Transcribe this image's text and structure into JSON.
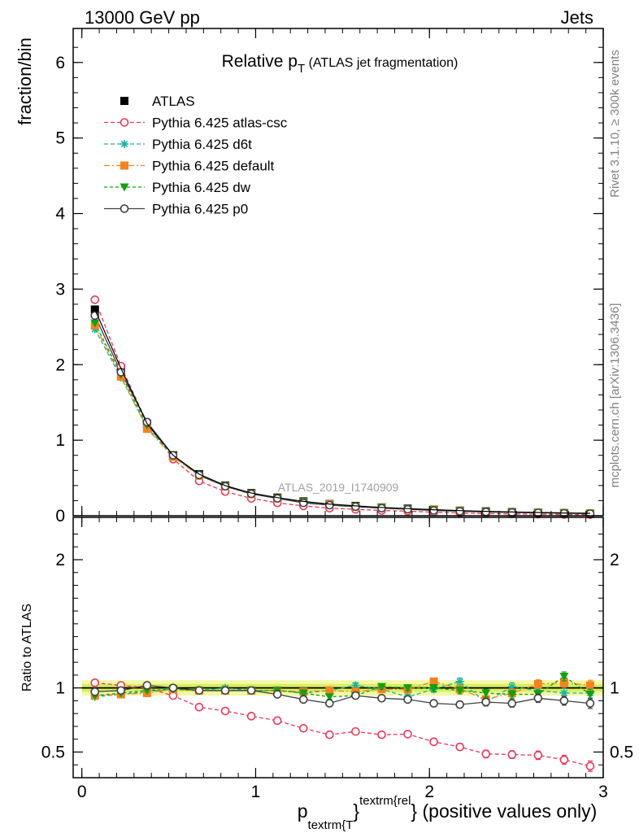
{
  "header": {
    "energy": "13000 GeV pp",
    "category": "Jets"
  },
  "side_labels": {
    "rivet": "Rivet 3.1.10, ≥ 300k events",
    "source": "mcplots.cern.ch [arXiv:1306.3436]"
  },
  "watermark": "ATLAS_2019_I1740909",
  "title": {
    "main": "Relative p",
    "sub": "T",
    "paren": " (ATLAS jet fragmentation)"
  },
  "axes": {
    "ylabel_main": "fraction/bin",
    "ylabel_ratio": "Ratio to ATLAS",
    "xlabel": {
      "p": "p",
      "sub": "textrm{T",
      "brace": "}",
      "sup": "textrm{rel",
      "rest": "} (positive values only)"
    }
  },
  "legend": [
    {
      "label": "ATLAS",
      "key": "atlas"
    },
    {
      "label": "Pythia 6.425 atlas-csc",
      "key": "csc"
    },
    {
      "label": "Pythia 6.425 d6t",
      "key": "d6t"
    },
    {
      "label": "Pythia 6.425 default",
      "key": "def"
    },
    {
      "label": "Pythia 6.425 dw",
      "key": "dw"
    },
    {
      "label": "Pythia 6.425 p0",
      "key": "p0"
    }
  ],
  "styles": {
    "atlas": {
      "color": "#000000",
      "marker": "square-filled",
      "dash": ""
    },
    "csc": {
      "color": "#e8385a",
      "marker": "circle-open",
      "dash": "5,3"
    },
    "d6t": {
      "color": "#18b49c",
      "marker": "star",
      "dash": "5,3"
    },
    "def": {
      "color": "#f48220",
      "marker": "square-filled",
      "dash": "7,3,2,3"
    },
    "dw": {
      "color": "#10a010",
      "marker": "triangle-down-filled",
      "dash": "4,3"
    },
    "p0": {
      "color": "#404040",
      "marker": "circle-open",
      "dash": ""
    }
  },
  "chart_data": {
    "type": "line",
    "x": [
      0.075,
      0.225,
      0.375,
      0.525,
      0.675,
      0.825,
      0.975,
      1.125,
      1.275,
      1.425,
      1.575,
      1.725,
      1.875,
      2.025,
      2.175,
      2.325,
      2.475,
      2.625,
      2.775,
      2.925
    ],
    "xlim": [
      -0.05,
      3.0
    ],
    "main": {
      "ylim": [
        0,
        6.45
      ],
      "xticks": [
        0,
        1,
        2,
        3
      ],
      "yticks": [
        0,
        1,
        2,
        3,
        4,
        5,
        6
      ],
      "series": {
        "atlas": [
          2.73,
          1.95,
          1.22,
          0.8,
          0.55,
          0.4,
          0.3,
          0.24,
          0.19,
          0.155,
          0.13,
          0.11,
          0.095,
          0.08,
          0.068,
          0.058,
          0.05,
          0.043,
          0.037,
          0.032
        ],
        "csc": [
          2.86,
          1.98,
          1.23,
          0.75,
          0.46,
          0.32,
          0.23,
          0.17,
          0.13,
          0.1,
          0.085,
          0.07,
          0.06,
          0.047,
          0.037,
          0.029,
          0.024,
          0.021,
          0.017,
          0.014
        ],
        "d6t": [
          2.47,
          1.83,
          1.17,
          0.79,
          0.53,
          0.4,
          0.29,
          0.23,
          0.18,
          0.15,
          0.13,
          0.1,
          0.088,
          0.078,
          0.069,
          0.051,
          0.049,
          0.045,
          0.035,
          0.031
        ],
        "def": [
          2.52,
          1.84,
          1.15,
          0.78,
          0.53,
          0.39,
          0.29,
          0.23,
          0.18,
          0.15,
          0.12,
          0.11,
          0.088,
          0.085,
          0.067,
          0.051,
          0.047,
          0.044,
          0.038,
          0.033
        ],
        "dw": [
          2.55,
          1.87,
          1.2,
          0.79,
          0.54,
          0.39,
          0.29,
          0.23,
          0.18,
          0.14,
          0.12,
          0.11,
          0.092,
          0.08,
          0.066,
          0.052,
          0.047,
          0.04,
          0.04,
          0.03
        ],
        "p0": [
          2.65,
          1.9,
          1.24,
          0.8,
          0.54,
          0.39,
          0.29,
          0.23,
          0.17,
          0.14,
          0.12,
          0.1,
          0.086,
          0.07,
          0.059,
          0.051,
          0.044,
          0.039,
          0.033,
          0.028
        ]
      }
    },
    "ratio": {
      "ylim": [
        0.3,
        2.33
      ],
      "yticks": [
        0.5,
        1,
        2
      ],
      "ytick_labels": [
        "0.5",
        "1",
        "2"
      ],
      "band_inner": 0.03,
      "band_outer": 0.06,
      "series": {
        "csc": {
          "values": [
            1.04,
            1.02,
            1.0,
            0.94,
            0.85,
            0.82,
            0.78,
            0.745,
            0.685,
            0.635,
            0.66,
            0.635,
            0.64,
            0.58,
            0.54,
            0.485,
            0.48,
            0.475,
            0.44,
            0.39
          ],
          "err": [
            0.008,
            0.008,
            0.008,
            0.008,
            0.01,
            0.01,
            0.012,
            0.013,
            0.015,
            0.018,
            0.02,
            0.02,
            0.022,
            0.025,
            0.027,
            0.03,
            0.03,
            0.033,
            0.035,
            0.04
          ]
        },
        "d6t": {
          "values": [
            0.93,
            0.95,
            0.97,
            0.99,
            0.98,
            1.0,
            0.98,
            0.98,
            0.96,
            0.98,
            1.02,
            0.99,
            0.93,
            0.99,
            1.05,
            0.89,
            1.01,
            0.98,
            0.96,
            0.96
          ],
          "err": [
            0.008,
            0.008,
            0.008,
            0.008,
            0.01,
            0.01,
            0.012,
            0.013,
            0.015,
            0.018,
            0.02,
            0.02,
            0.022,
            0.025,
            0.027,
            0.03,
            0.03,
            0.033,
            0.035,
            0.04
          ]
        },
        "def": {
          "values": [
            0.94,
            0.95,
            0.96,
            0.99,
            0.98,
            0.98,
            0.98,
            0.98,
            0.97,
            0.98,
            0.97,
            0.99,
            0.99,
            1.05,
            0.99,
            0.91,
            0.96,
            1.03,
            1.04,
            1.02
          ],
          "err": [
            0.008,
            0.008,
            0.008,
            0.008,
            0.01,
            0.01,
            0.012,
            0.013,
            0.015,
            0.018,
            0.02,
            0.02,
            0.022,
            0.025,
            0.027,
            0.03,
            0.03,
            0.033,
            0.035,
            0.04
          ]
        },
        "dw": {
          "values": [
            0.94,
            0.96,
            0.98,
            0.99,
            0.98,
            0.98,
            0.98,
            0.98,
            0.96,
            0.93,
            0.94,
            1.01,
            1.0,
            1.0,
            0.98,
            0.96,
            0.95,
            0.95,
            1.09,
            0.95
          ],
          "err": [
            0.008,
            0.008,
            0.008,
            0.008,
            0.01,
            0.01,
            0.012,
            0.013,
            0.015,
            0.018,
            0.02,
            0.02,
            0.022,
            0.025,
            0.027,
            0.03,
            0.03,
            0.033,
            0.035,
            0.04
          ]
        },
        "p0": {
          "values": [
            0.97,
            0.98,
            1.02,
            1.0,
            0.98,
            0.98,
            0.98,
            0.95,
            0.91,
            0.88,
            0.94,
            0.92,
            0.91,
            0.88,
            0.87,
            0.89,
            0.88,
            0.92,
            0.9,
            0.88
          ],
          "err": [
            0.008,
            0.008,
            0.008,
            0.008,
            0.01,
            0.01,
            0.012,
            0.013,
            0.015,
            0.018,
            0.02,
            0.02,
            0.022,
            0.025,
            0.027,
            0.03,
            0.03,
            0.033,
            0.035,
            0.04
          ]
        }
      }
    },
    "bar_half_width": 0.075
  }
}
